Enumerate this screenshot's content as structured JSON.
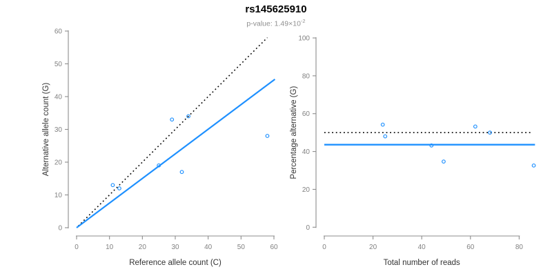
{
  "header": {
    "title": "rs145625910",
    "subtitle_base": "p-value: 1.49×10",
    "subtitle_exponent": "-2"
  },
  "colors": {
    "point_blue": "#1E90FF",
    "line_blue": "#1E90FF",
    "dotted_black": "#000000",
    "axis_gray": "#8C8C8C",
    "tick_label_gray": "#808080",
    "axis_title_color": "#333333",
    "title_color": "#000000",
    "subtitle_gray": "#8F8F8F",
    "background": "#FFFFFF"
  },
  "chart_data": [
    {
      "type": "scatter",
      "panel": "left",
      "title": "rs145625910",
      "subtitle": "p-value: 1.49×10⁻²",
      "xlabel": "Reference allele count (C)",
      "ylabel": "Alternative allele count (G)",
      "xlim": [
        0,
        60
      ],
      "ylim": [
        0,
        60
      ],
      "xticks": [
        0,
        10,
        20,
        30,
        40,
        50,
        60
      ],
      "yticks": [
        0,
        10,
        20,
        30,
        40,
        50,
        60
      ],
      "grid": false,
      "legend": "none",
      "marker": "open-circle",
      "points": [
        [
          11,
          13
        ],
        [
          13,
          12
        ],
        [
          25,
          19
        ],
        [
          29,
          33
        ],
        [
          32,
          17
        ],
        [
          34,
          34
        ],
        [
          58,
          28
        ]
      ],
      "lines": [
        {
          "name": "identity-line",
          "label": "identity y=x",
          "from": [
            0.5,
            0.5
          ],
          "to": [
            58,
            58
          ],
          "dash": "dotted",
          "colorKey": "dotted_black",
          "width": 1.6
        },
        {
          "name": "fit-line",
          "label": "fitted ratio line",
          "from": [
            0,
            0
          ],
          "to": [
            60.3,
            45.3
          ],
          "dash": "solid",
          "colorKey": "line_blue",
          "width": 2.2
        }
      ]
    },
    {
      "type": "scatter",
      "panel": "right",
      "xlabel": "Total number of reads",
      "ylabel": "Percentage alternative (G)",
      "xlim": [
        0,
        88
      ],
      "ylim": [
        0,
        100
      ],
      "xticks": [
        0,
        20,
        40,
        60,
        80
      ],
      "yticks": [
        0,
        20,
        40,
        60,
        80,
        100
      ],
      "grid": false,
      "legend": "none",
      "marker": "open-circle",
      "points": [
        [
          24,
          54.2
        ],
        [
          25,
          48
        ],
        [
          44,
          43.2
        ],
        [
          49,
          34.7
        ],
        [
          62,
          53.2
        ],
        [
          68,
          50
        ],
        [
          86,
          32.6
        ]
      ],
      "lines": [
        {
          "name": "fifty-percent-line",
          "label": "50% reference line",
          "from": [
            0,
            50
          ],
          "to": [
            85,
            50
          ],
          "dash": "dotted",
          "colorKey": "dotted_black",
          "width": 1.6
        },
        {
          "name": "mean-percentage-line",
          "label": "mean percentage 43.6",
          "from": [
            0,
            43.6
          ],
          "to": [
            86.5,
            43.6
          ],
          "dash": "solid",
          "colorKey": "line_blue",
          "width": 2.4
        }
      ]
    }
  ]
}
